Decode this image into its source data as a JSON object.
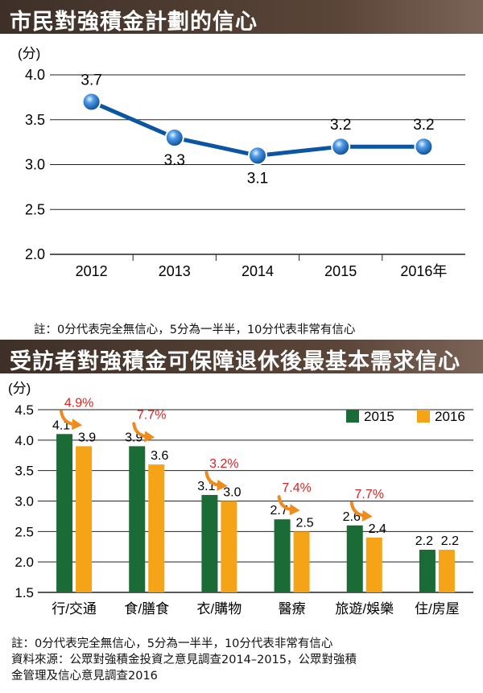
{
  "chart_data": [
    {
      "type": "line",
      "title": "市民對強積金計劃的信心",
      "unit_label": "(分)",
      "categories": [
        "2012",
        "2013",
        "2014",
        "2015",
        "2016年"
      ],
      "series": [
        {
          "name": "信心",
          "values": [
            3.7,
            3.3,
            3.1,
            3.2,
            3.2
          ]
        }
      ],
      "data_labels": [
        "3.7",
        "3.3",
        "3.1",
        "3.2",
        "3.2"
      ],
      "ylim": [
        2.0,
        4.0
      ],
      "yticks": [
        2.0,
        2.5,
        3.0,
        3.5,
        4.0
      ],
      "ytick_labels": [
        "2.0",
        "2.5",
        "3.0",
        "3.5",
        "4.0"
      ],
      "grid": true,
      "line_color": "#0b55a3",
      "note": "註：0分代表完全無信心，5分為一半半，10分代表非常有信心"
    },
    {
      "type": "bar",
      "title": "受訪者對強積金可保障退休後最基本需求信心",
      "unit_label": "(分)",
      "categories": [
        "行/交通",
        "食/膳食",
        "衣/購物",
        "醫療",
        "旅遊/娛樂",
        "住/房屋"
      ],
      "series": [
        {
          "name": "2015",
          "color": "#1a6b35",
          "values": [
            4.1,
            3.9,
            3.1,
            2.7,
            2.6,
            2.2
          ],
          "labels": [
            "4.1",
            "3.9",
            "3.1",
            "2.7",
            "2.6",
            "2.2"
          ]
        },
        {
          "name": "2016",
          "color": "#f5a418",
          "values": [
            3.9,
            3.6,
            3.0,
            2.5,
            2.4,
            2.2
          ],
          "labels": [
            "3.9",
            "3.6",
            "3.0",
            "2.5",
            "2.4",
            "2.2"
          ]
        }
      ],
      "change_annotations": [
        "4.9%",
        "7.7%",
        "3.2%",
        "7.4%",
        "7.7%",
        ""
      ],
      "annotation_color": "#e02020",
      "ylim": [
        1.5,
        4.5
      ],
      "yticks": [
        1.5,
        2.0,
        2.5,
        3.0,
        3.5,
        4.0,
        4.5
      ],
      "ytick_labels": [
        "1.5",
        "2.0",
        "2.5",
        "3.0",
        "3.5",
        "4.0",
        "4.5"
      ],
      "grid": true,
      "legend_position": "top-right"
    }
  ],
  "footnotes": {
    "line1": "註：0分代表完全無信心，5分為一半半，10分代表非常有信心",
    "line2": "資料來源：公眾對強積金投資之意見調查2014–2015，公眾對強積",
    "line3": "金管理及信心意見調查2016"
  }
}
